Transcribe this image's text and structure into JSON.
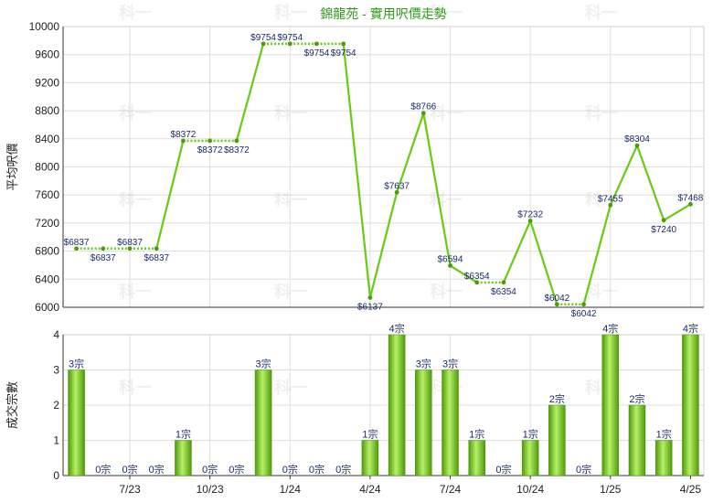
{
  "chart_data": [
    {
      "type": "line",
      "title": "錦龍苑 - 實用呎價走勢",
      "ylabel": "平均呎價",
      "ylim": [
        6000,
        10000
      ],
      "yticks": [
        6000,
        6400,
        6800,
        7200,
        7600,
        8000,
        8400,
        8800,
        9200,
        9600,
        10000
      ],
      "grid": true,
      "series": [
        {
          "values": [
            6837,
            6837,
            6837,
            6837,
            8372,
            8372,
            8372,
            9754,
            9754,
            9754,
            9754,
            6137,
            7637,
            8766,
            6594,
            6354,
            6354,
            7232,
            6042,
            6042,
            7455,
            8304,
            7240,
            7468
          ],
          "labels": [
            "$6837",
            "$6837",
            "$6837",
            "$6837",
            "$8372",
            "$8372",
            "$8372",
            "$9754",
            "$9754",
            "$9754",
            "$9754",
            "$6137",
            "$7637",
            "$8766",
            "$6594",
            "$6354",
            "$6354",
            "$7232",
            "$6042",
            "$6042",
            "$7455",
            "$8304",
            "$7240",
            "$7468"
          ],
          "estimated": [
            false,
            true,
            true,
            false,
            false,
            true,
            false,
            false,
            true,
            true,
            false,
            false,
            false,
            false,
            false,
            false,
            true,
            false,
            false,
            true,
            false,
            false,
            false,
            false
          ],
          "color": "#66cc11"
        }
      ]
    },
    {
      "type": "bar",
      "ylabel": "成交宗數",
      "ylim": [
        0,
        4
      ],
      "yticks": [
        0,
        1,
        2,
        3,
        4
      ],
      "grid": true,
      "values": [
        3,
        0,
        0,
        0,
        1,
        0,
        0,
        3,
        0,
        0,
        0,
        1,
        4,
        3,
        3,
        1,
        0,
        1,
        2,
        0,
        4,
        2,
        1,
        4
      ],
      "labels": [
        "3宗",
        "0宗",
        "0宗",
        "0宗",
        "1宗",
        "0宗",
        "0宗",
        "3宗",
        "0宗",
        "0宗",
        "0宗",
        "1宗",
        "4宗",
        "3宗",
        "3宗",
        "1宗",
        "0宗",
        "1宗",
        "2宗",
        "0宗",
        "4宗",
        "2宗",
        "1宗",
        "4宗"
      ],
      "categories_shown": [
        "7/23",
        "10/23",
        "1/24",
        "4/24",
        "7/24",
        "10/24",
        "1/25",
        "4/25"
      ],
      "category_index": [
        2,
        5,
        8,
        11,
        14,
        17,
        20,
        23
      ],
      "color": "#66bb11"
    }
  ],
  "watermark": "科一"
}
